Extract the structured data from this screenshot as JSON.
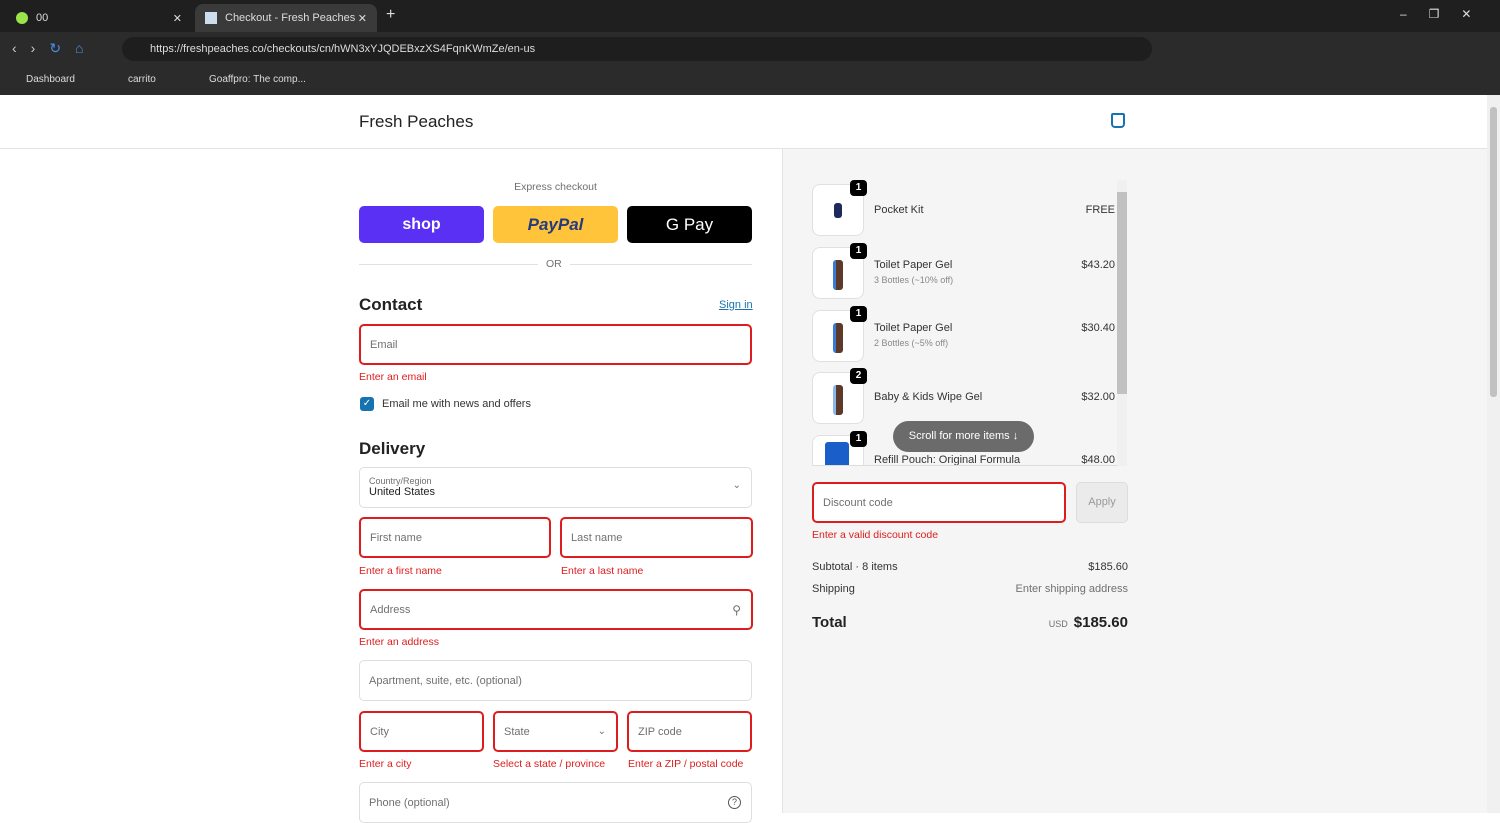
{
  "browser": {
    "tabs": [
      {
        "label": "00"
      },
      {
        "label": "Checkout - Fresh Peaches"
      }
    ],
    "url": "https://freshpeaches.co/checkouts/cn/hWN3xYJQDEBxzXS4FqnKWmZe/en-us",
    "bookmarks": [
      "Dashboard",
      "carrito",
      "Goaffpro: The comp..."
    ]
  },
  "store": {
    "name": "Fresh Peaches"
  },
  "express": {
    "label": "Express checkout",
    "shop": "shop",
    "paypal": "PayPal",
    "gpay": "G Pay",
    "or": "OR"
  },
  "contact": {
    "title": "Contact",
    "sign_in": "Sign in",
    "email_placeholder": "Email",
    "email_error": "Enter an email",
    "news_label": "Email me with news and offers"
  },
  "delivery": {
    "title": "Delivery",
    "country_label": "Country/Region",
    "country": "United States",
    "first": "First name",
    "first_err": "Enter a first name",
    "last": "Last name",
    "last_err": "Enter a last name",
    "address": "Address",
    "address_err": "Enter an address",
    "apt": "Apartment, suite, etc. (optional)",
    "city": "City",
    "city_err": "Enter a city",
    "state": "State",
    "state_err": "Select a state / province",
    "zip": "ZIP code",
    "zip_err": "Enter a ZIP / postal code",
    "phone": "Phone (optional)"
  },
  "cart": {
    "items": [
      {
        "name": "Pocket Kit",
        "sub": "",
        "price": "FREE",
        "qty": "1"
      },
      {
        "name": "Toilet Paper Gel",
        "sub": "3 Bottles (~10% off)",
        "price": "$43.20",
        "qty": "1"
      },
      {
        "name": "Toilet Paper Gel",
        "sub": "2 Bottles (~5% off)",
        "price": "$30.40",
        "qty": "1"
      },
      {
        "name": "Baby & Kids Wipe Gel",
        "sub": "",
        "price": "$32.00",
        "qty": "2"
      },
      {
        "name": "Refill Pouch: Original Formula",
        "sub": "",
        "price": "$48.00",
        "qty": "1"
      }
    ],
    "scroll_hint": "Scroll for more items",
    "discount_placeholder": "Discount code",
    "apply": "Apply",
    "discount_err": "Enter a valid discount code",
    "subtotal_label": "Subtotal · 8 items",
    "subtotal": "$185.60",
    "shipping_label": "Shipping",
    "shipping": "Enter shipping address",
    "total_label": "Total",
    "currency": "USD",
    "total": "$185.60"
  },
  "colors": {
    "accent": "#1773b0",
    "error": "#dd1d1d",
    "shop": "#5a31f4",
    "paypal": "#ffc439"
  }
}
